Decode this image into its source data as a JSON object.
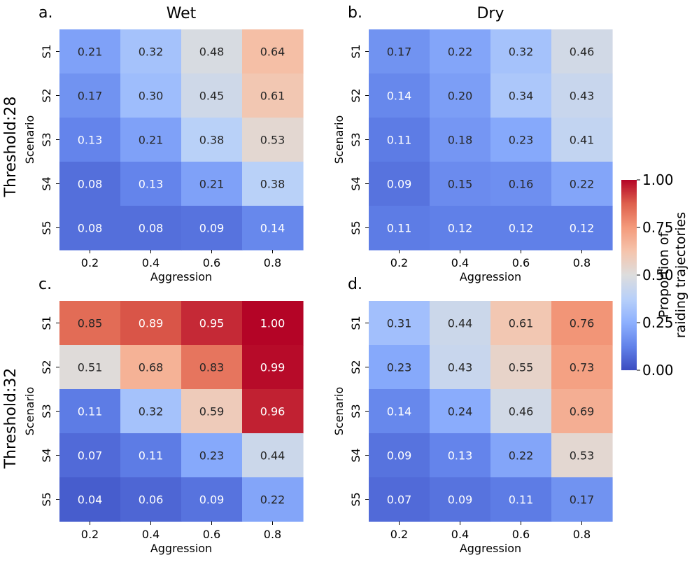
{
  "chart_data": [
    {
      "type": "heatmap",
      "panel_label": "a.",
      "title": "Wet",
      "row_title": "Threshold:28",
      "xlabel": "Aggression",
      "ylabel": "Scenario",
      "x_categories": [
        "0.2",
        "0.4",
        "0.6",
        "0.8"
      ],
      "y_categories": [
        "S1",
        "S2",
        "S3",
        "S4",
        "S5"
      ],
      "values": [
        [
          0.21,
          0.32,
          0.48,
          0.64
        ],
        [
          0.17,
          0.3,
          0.45,
          0.61
        ],
        [
          0.13,
          0.21,
          0.38,
          0.53
        ],
        [
          0.08,
          0.13,
          0.21,
          0.38
        ],
        [
          0.08,
          0.08,
          0.09,
          0.14
        ]
      ]
    },
    {
      "type": "heatmap",
      "panel_label": "b.",
      "title": "Dry",
      "xlabel": "Aggression",
      "ylabel": "Scenario",
      "x_categories": [
        "0.2",
        "0.4",
        "0.6",
        "0.8"
      ],
      "y_categories": [
        "S1",
        "S2",
        "S3",
        "S4",
        "S5"
      ],
      "values": [
        [
          0.17,
          0.22,
          0.32,
          0.46
        ],
        [
          0.14,
          0.2,
          0.34,
          0.43
        ],
        [
          0.11,
          0.18,
          0.23,
          0.41
        ],
        [
          0.09,
          0.15,
          0.16,
          0.22
        ],
        [
          0.11,
          0.12,
          0.12,
          0.12
        ]
      ]
    },
    {
      "type": "heatmap",
      "panel_label": "c.",
      "row_title": "Threshold:32",
      "xlabel": "Aggression",
      "ylabel": "Scenario",
      "x_categories": [
        "0.2",
        "0.4",
        "0.6",
        "0.8"
      ],
      "y_categories": [
        "S1",
        "S2",
        "S3",
        "S4",
        "S5"
      ],
      "values": [
        [
          0.85,
          0.89,
          0.95,
          1.0
        ],
        [
          0.51,
          0.68,
          0.83,
          0.99
        ],
        [
          0.11,
          0.32,
          0.59,
          0.96
        ],
        [
          0.07,
          0.11,
          0.23,
          0.44
        ],
        [
          0.04,
          0.06,
          0.09,
          0.22
        ]
      ]
    },
    {
      "type": "heatmap",
      "panel_label": "d.",
      "xlabel": "Aggression",
      "ylabel": "Scenario",
      "x_categories": [
        "0.2",
        "0.4",
        "0.6",
        "0.8"
      ],
      "y_categories": [
        "S1",
        "S2",
        "S3",
        "S4",
        "S5"
      ],
      "values": [
        [
          0.31,
          0.44,
          0.61,
          0.76
        ],
        [
          0.23,
          0.43,
          0.55,
          0.73
        ],
        [
          0.14,
          0.24,
          0.46,
          0.69
        ],
        [
          0.09,
          0.13,
          0.22,
          0.53
        ],
        [
          0.07,
          0.09,
          0.11,
          0.17
        ]
      ]
    }
  ],
  "colorbar": {
    "label_line1": "Proportion of",
    "label_line2": "raiding trajectories",
    "colormap": "coolwarm",
    "range": [
      0,
      1
    ],
    "ticks": [
      "0.00",
      "0.25",
      "0.50",
      "0.75",
      "1.00"
    ]
  },
  "colors": {
    "coolwarm_stops": [
      "#3b4cc0",
      "#6282ea",
      "#8db0fe",
      "#b8d0f9",
      "#dddddd",
      "#f5c4ac",
      "#f49a7b",
      "#de604d",
      "#b40426"
    ],
    "text_light": "#ffffff",
    "text_dark": "#262626"
  }
}
